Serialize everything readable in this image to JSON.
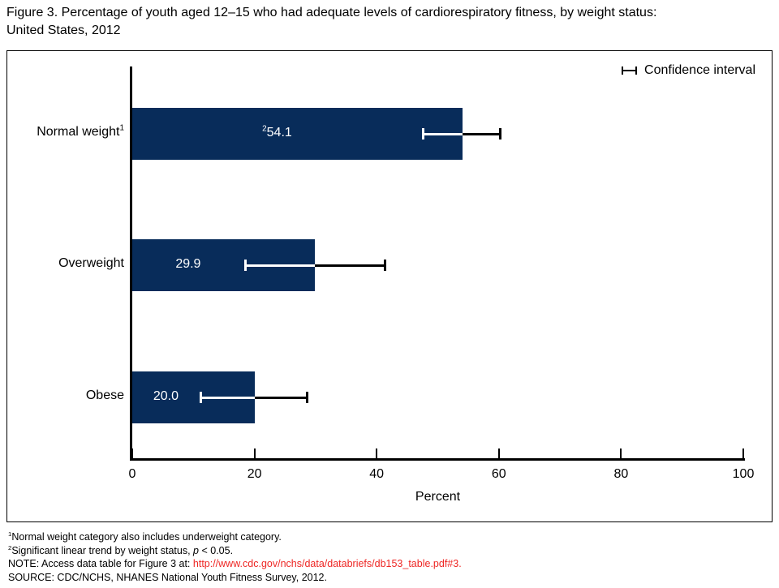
{
  "title": {
    "line1": "Figure 3. Percentage of youth aged 12–15 who had adequate levels of cardiorespiratory fitness, by weight status:",
    "line2": "United States, 2012"
  },
  "chart_data": {
    "type": "bar",
    "orientation": "horizontal",
    "title": "Figure 3. Percentage of youth aged 12–15 who had adequate levels of cardiorespiratory fitness, by weight status: United States, 2012",
    "categories": [
      "Normal weight",
      "Overweight",
      "Obese"
    ],
    "category_superscripts": [
      "1",
      "",
      ""
    ],
    "values": [
      54.1,
      29.9,
      20.0
    ],
    "value_labels": [
      "54.1",
      "29.9",
      "20.0"
    ],
    "value_label_superscripts": [
      "2",
      "",
      ""
    ],
    "ci_low": [
      47.4,
      18.3,
      11.0
    ],
    "ci_high": [
      60.4,
      41.6,
      28.8
    ],
    "xlabel": "Percent",
    "xlim": [
      0,
      100
    ],
    "xticks": [
      "0",
      "20",
      "40",
      "60",
      "80",
      "100"
    ],
    "grid": false,
    "legend_label": "Confidence interval",
    "legend_position": "top-right",
    "bar_color": "#082c5a",
    "bar_label_color": "#ffffff",
    "axis_color": "#000000",
    "ci_color_inside_bar": "#ffffff",
    "ci_color_outside_bar": "#000000"
  },
  "footnotes": {
    "fn1_sup": "1",
    "fn1_text": "Normal weight category also includes underweight category.",
    "fn2_sup": "2",
    "fn2_text_before": "Significant linear trend by weight status, ",
    "fn2_p": "p",
    "fn2_text_after": " < 0.05.",
    "note_prefix": "NOTE: Access data table for Figure 3 at: ",
    "note_link": "http://www.cdc.gov/nchs/data/databriefs/db153_table.pdf#3.",
    "link_color": "#ee2724",
    "source": "SOURCE: CDC/NCHS, NHANES National Youth Fitness Survey, 2012."
  }
}
